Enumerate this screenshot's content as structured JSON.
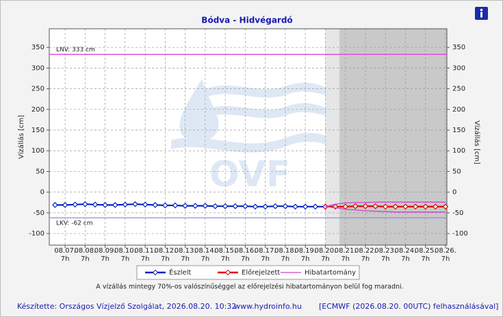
{
  "chart_data": {
    "type": "line",
    "title": "Bódva - Hidvégardó",
    "y_label": "Vízállás [cm]",
    "xlim": [
      6.21,
      26.07
    ],
    "ylim": [
      -128,
      395
    ],
    "yticks": [
      -100,
      -50,
      0,
      50,
      100,
      150,
      200,
      250,
      300,
      350
    ],
    "xticks": [
      {
        "value": 7,
        "label": "08.07.\n7h"
      },
      {
        "value": 8,
        "label": "08.08.\n7h"
      },
      {
        "value": 9,
        "label": "08.09.\n7h"
      },
      {
        "value": 10,
        "label": "08.10.\n7h"
      },
      {
        "value": 11,
        "label": "08.11.\n7h"
      },
      {
        "value": 12,
        "label": "08.12.\n7h"
      },
      {
        "value": 13,
        "label": "08.13.\n7h"
      },
      {
        "value": 14,
        "label": "08.14.\n7h"
      },
      {
        "value": 15,
        "label": "08.15.\n7h"
      },
      {
        "value": 16,
        "label": "08.16.\n7h"
      },
      {
        "value": 17,
        "label": "08.17.\n7h"
      },
      {
        "value": 18,
        "label": "08.18.\n7h"
      },
      {
        "value": 19,
        "label": "08.19.\n7h"
      },
      {
        "value": 20,
        "label": "08.20.\n7h"
      },
      {
        "value": 21,
        "label": "08.21.\n7h"
      },
      {
        "value": 22,
        "label": "08.22.\n7h"
      },
      {
        "value": 23,
        "label": "08.23.\n7h"
      },
      {
        "value": 24,
        "label": "08.24.\n7h"
      },
      {
        "value": 25,
        "label": "08.25.\n7h"
      },
      {
        "value": 26,
        "label": "08.26.\n7h"
      }
    ],
    "grid": true,
    "shaded_regions": [
      {
        "from": 20.0,
        "to": 20.7,
        "color": "#e6e6e6"
      },
      {
        "from": 20.7,
        "to": 26.07,
        "color": "#c9c9c9"
      }
    ],
    "thresholds": [
      {
        "value": 333,
        "label": "LNV: 333 cm",
        "color": "#e040e0"
      },
      {
        "value": -62,
        "label": "LKV: -62 cm",
        "color": "#8c8cd8"
      }
    ],
    "series": [
      {
        "name": "Észlelt",
        "color": "#0020c0",
        "marker": "diamond",
        "x": [
          6.5,
          7,
          7.5,
          8,
          8.5,
          9,
          9.5,
          10,
          10.5,
          11,
          11.5,
          12,
          12.5,
          13,
          13.5,
          14,
          14.5,
          15,
          15.5,
          16,
          16.5,
          17,
          17.5,
          18,
          18.5,
          19,
          19.5,
          20
        ],
        "values": [
          -31,
          -31,
          -30,
          -29,
          -30,
          -31,
          -31,
          -30,
          -29,
          -30,
          -31,
          -32,
          -32,
          -33,
          -33,
          -33,
          -34,
          -34,
          -34,
          -34,
          -35,
          -35,
          -34,
          -34,
          -35,
          -35,
          -35,
          -35
        ]
      },
      {
        "name": "Előrejelzett",
        "color": "#e00000",
        "marker": "diamond",
        "x": [
          20,
          20.5,
          21,
          21.5,
          22,
          22.5,
          23,
          23.5,
          24,
          24.5,
          25,
          25.5,
          26
        ],
        "values": [
          -35,
          -35,
          -35,
          -34,
          -34,
          -34,
          -35,
          -35,
          -35,
          -35,
          -35,
          -35,
          -35
        ]
      },
      {
        "name": "Hibatartomány",
        "color": "#d040d0",
        "marker": "none",
        "x": [
          20,
          20.5,
          21,
          21.5,
          22,
          22.5,
          23,
          23.5,
          24,
          24.5,
          25,
          25.5,
          26
        ],
        "values": [
          -35,
          -29,
          -26,
          -25,
          -25,
          -24,
          -24,
          -24,
          -24,
          -24,
          -24,
          -24,
          -24
        ],
        "values_low": [
          -35,
          -38,
          -41,
          -43,
          -45,
          -46,
          -47,
          -48,
          -48,
          -48,
          -48,
          -48,
          -48
        ]
      }
    ],
    "note": "A vízállás mintegy 70%-os valószínűséggel az előrejelzési hibatartományon belül fog maradni.",
    "watermark": "OVF",
    "footer": {
      "left": "Készítette: Országos Vízjelző Szolgálat, 2026.08.20. 10:32",
      "center": "www.hydroinfo.hu",
      "right": "[ECMWF (2026.08.20. 00UTC) felhasználásával]"
    }
  }
}
